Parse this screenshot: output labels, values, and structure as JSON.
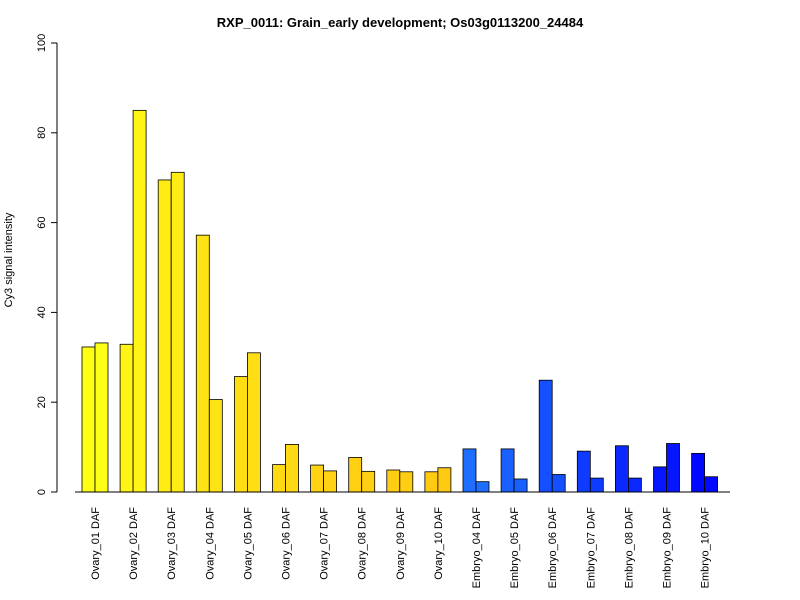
{
  "chart_data": {
    "type": "bar",
    "title": "RXP_0011: Grain_early development; Os03g0113200_24484",
    "xlabel": "",
    "ylabel": "Cy3 signal intensity",
    "ylim": [
      0,
      100
    ],
    "yticks": [
      0,
      20,
      40,
      60,
      80,
      100
    ],
    "grid": false,
    "legend": "none",
    "bars_per_category": 2,
    "categories": [
      "Ovary_01 DAF",
      "Ovary_02 DAF",
      "Ovary_03 DAF",
      "Ovary_04 DAF",
      "Ovary_05 DAF",
      "Ovary_06 DAF",
      "Ovary_07 DAF",
      "Ovary_08 DAF",
      "Ovary_09 DAF",
      "Ovary_10 DAF",
      "Embryo_04 DAF",
      "Embryo_05 DAF",
      "Embryo_06 DAF",
      "Embryo_07 DAF",
      "Embryo_08 DAF",
      "Embryo_09 DAF",
      "Embryo_10 DAF"
    ],
    "values": [
      [
        32.3,
        33.2
      ],
      [
        32.9,
        85.0
      ],
      [
        69.5,
        71.2
      ],
      [
        57.2,
        20.6
      ],
      [
        25.7,
        31.0
      ],
      [
        6.1,
        10.6
      ],
      [
        6.0,
        4.7
      ],
      [
        7.7,
        4.6
      ],
      [
        4.9,
        4.5
      ],
      [
        4.5,
        5.4
      ],
      [
        9.6,
        2.3
      ],
      [
        9.6,
        2.9
      ],
      [
        24.9,
        3.9
      ],
      [
        9.1,
        3.1
      ],
      [
        10.3,
        3.1
      ],
      [
        5.6,
        10.8
      ],
      [
        8.6,
        3.4
      ]
    ],
    "colors": [
      "#FFFF16",
      "#FFF415",
      "#FFEC15",
      "#FFE314",
      "#FFDE14",
      "#FFD914",
      "#FFD213",
      "#FFD012",
      "#FFCE12",
      "#FFCB12",
      "#1E6FFF",
      "#1A60FF",
      "#1450FF",
      "#0E3BFF",
      "#0A28FF",
      "#0616FF",
      "#0008FF"
    ]
  }
}
